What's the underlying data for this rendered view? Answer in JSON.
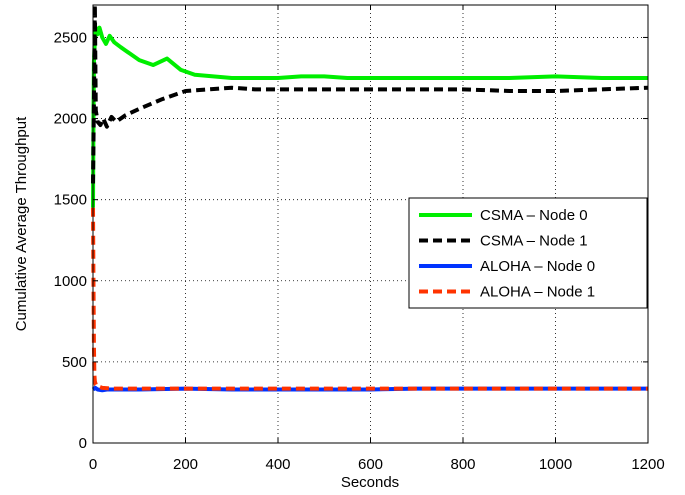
{
  "chart_data": {
    "type": "line",
    "title": "",
    "xlabel": "Seconds",
    "ylabel": "Cumulative Average Throughput",
    "xlim": [
      0,
      1200
    ],
    "ylim": [
      0,
      2700
    ],
    "xticks": [
      0,
      200,
      400,
      600,
      800,
      1000,
      1200
    ],
    "yticks": [
      0,
      500,
      1000,
      1500,
      2000,
      2500
    ],
    "grid": true,
    "legend_position": "center-right",
    "series": [
      {
        "name": "CSMA – Node 0",
        "color": "#00ee00",
        "dash": "solid",
        "points": [
          [
            0,
            1450
          ],
          [
            1,
            2000
          ],
          [
            2,
            2350
          ],
          [
            4,
            2480
          ],
          [
            6,
            2560
          ],
          [
            10,
            2520
          ],
          [
            14,
            2560
          ],
          [
            20,
            2500
          ],
          [
            28,
            2460
          ],
          [
            36,
            2510
          ],
          [
            46,
            2470
          ],
          [
            60,
            2440
          ],
          [
            80,
            2400
          ],
          [
            100,
            2360
          ],
          [
            130,
            2330
          ],
          [
            160,
            2370
          ],
          [
            190,
            2300
          ],
          [
            220,
            2270
          ],
          [
            260,
            2260
          ],
          [
            300,
            2250
          ],
          [
            350,
            2250
          ],
          [
            400,
            2250
          ],
          [
            450,
            2260
          ],
          [
            500,
            2260
          ],
          [
            550,
            2250
          ],
          [
            600,
            2250
          ],
          [
            650,
            2250
          ],
          [
            700,
            2250
          ],
          [
            800,
            2250
          ],
          [
            900,
            2250
          ],
          [
            1000,
            2260
          ],
          [
            1100,
            2250
          ],
          [
            1150,
            2250
          ],
          [
            1200,
            2250
          ]
        ]
      },
      {
        "name": "CSMA – Node 1",
        "color": "#000000",
        "dash": "dashed",
        "points": [
          [
            0,
            1600
          ],
          [
            2,
            2100
          ],
          [
            4,
            2700
          ],
          [
            6,
            2050
          ],
          [
            10,
            1980
          ],
          [
            16,
            1960
          ],
          [
            22,
            2000
          ],
          [
            30,
            1950
          ],
          [
            40,
            2010
          ],
          [
            50,
            1980
          ],
          [
            70,
            2020
          ],
          [
            100,
            2060
          ],
          [
            150,
            2120
          ],
          [
            200,
            2170
          ],
          [
            250,
            2180
          ],
          [
            300,
            2190
          ],
          [
            350,
            2180
          ],
          [
            400,
            2180
          ],
          [
            450,
            2180
          ],
          [
            500,
            2180
          ],
          [
            600,
            2180
          ],
          [
            700,
            2180
          ],
          [
            800,
            2180
          ],
          [
            900,
            2170
          ],
          [
            950,
            2170
          ],
          [
            1000,
            2170
          ],
          [
            1100,
            2180
          ],
          [
            1200,
            2190
          ]
        ]
      },
      {
        "name": "ALOHA – Node 0",
        "color": "#0033ff",
        "dash": "solid",
        "points": [
          [
            0,
            330
          ],
          [
            5,
            340
          ],
          [
            10,
            330
          ],
          [
            20,
            325
          ],
          [
            30,
            330
          ],
          [
            50,
            330
          ],
          [
            100,
            330
          ],
          [
            200,
            335
          ],
          [
            300,
            330
          ],
          [
            400,
            330
          ],
          [
            500,
            330
          ],
          [
            600,
            330
          ],
          [
            700,
            335
          ],
          [
            800,
            335
          ],
          [
            900,
            335
          ],
          [
            1000,
            335
          ],
          [
            1100,
            335
          ],
          [
            1200,
            335
          ]
        ]
      },
      {
        "name": "ALOHA – Node 1",
        "color": "#ff3300",
        "dash": "dashed",
        "points": [
          [
            0,
            1450
          ],
          [
            1,
            1000
          ],
          [
            2,
            600
          ],
          [
            3,
            420
          ],
          [
            4,
            380
          ],
          [
            6,
            360
          ],
          [
            10,
            350
          ],
          [
            20,
            340
          ],
          [
            40,
            335
          ],
          [
            100,
            335
          ],
          [
            200,
            335
          ],
          [
            300,
            335
          ],
          [
            400,
            335
          ],
          [
            500,
            335
          ],
          [
            600,
            335
          ],
          [
            700,
            335
          ],
          [
            800,
            335
          ],
          [
            900,
            335
          ],
          [
            1000,
            335
          ],
          [
            1100,
            335
          ],
          [
            1200,
            335
          ]
        ]
      }
    ]
  }
}
